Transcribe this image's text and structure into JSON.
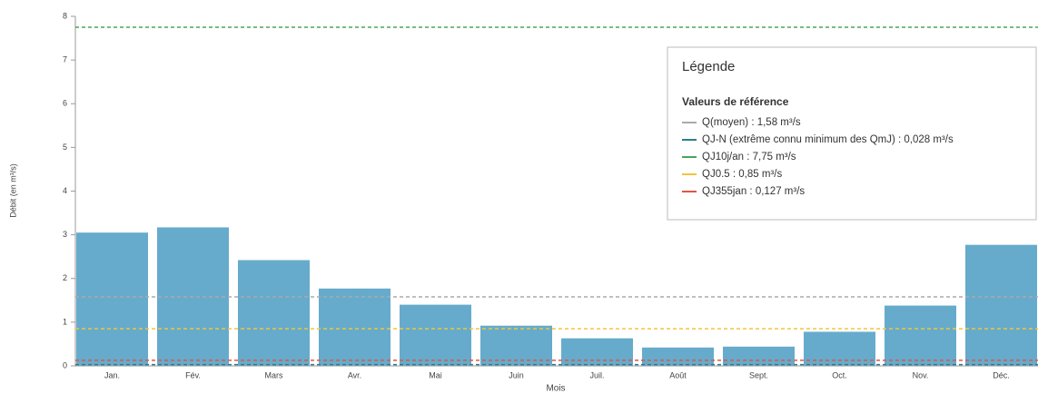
{
  "chart_data": {
    "type": "bar",
    "categories": [
      "Jan.",
      "Fév.",
      "Mars",
      "Avr.",
      "Mai",
      "Juin",
      "Juil.",
      "Août",
      "Sept.",
      "Oct.",
      "Nov.",
      "Déc."
    ],
    "values": [
      3.05,
      3.17,
      2.42,
      1.77,
      1.4,
      0.92,
      0.63,
      0.42,
      0.44,
      0.78,
      1.38,
      2.77
    ],
    "color": "#66abcc",
    "ylim": [
      0,
      8
    ],
    "yticks": [
      0,
      1,
      2,
      3,
      4,
      5,
      6,
      7,
      8
    ],
    "x_label": "Mois",
    "y_label": "Débit (en m³/s)",
    "legend": {
      "title": "Légende",
      "subtitle": "Valeurs de référence",
      "position": "upper right"
    },
    "reference_lines": [
      {
        "name": "Q(moyen)",
        "value": 1.58,
        "label": "Q(moyen) : 1,58 m³/s",
        "color": "#aaaaaa"
      },
      {
        "name": "QJ-N",
        "value": 0.028,
        "label": "QJ-N (extrême connu minimum des QmJ) : 0,028 m³/s",
        "color": "#2b7f8f"
      },
      {
        "name": "QJ10j/an",
        "value": 7.75,
        "label": "QJ10j/an : 7,75 m³/s",
        "color": "#4aa55a"
      },
      {
        "name": "QJ0.5",
        "value": 0.85,
        "label": "QJ0.5 : 0,85 m³/s",
        "color": "#f0c53a"
      },
      {
        "name": "QJ355jan",
        "value": 0.127,
        "label": "QJ355jan : 0,127 m³/s",
        "color": "#e05545"
      }
    ]
  }
}
